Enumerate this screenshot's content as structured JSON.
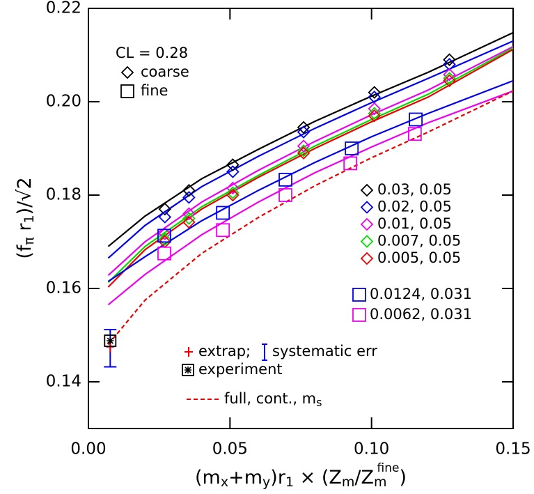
{
  "chart_data": {
    "type": "scatter",
    "xlim": [
      0,
      0.15
    ],
    "ylim": [
      0.13,
      0.22
    ],
    "xticks": [
      {
        "value": 0,
        "label": "0.00"
      },
      {
        "value": 0.05,
        "label": "0.05"
      },
      {
        "value": 0.1,
        "label": "0.10"
      },
      {
        "value": 0.15,
        "label": "0.15"
      }
    ],
    "yticks": [
      0.14,
      0.16,
      0.18,
      {
        "value": 0.2,
        "label": "0.20"
      },
      0.22
    ],
    "xlabel_parts": [
      "(m",
      "x",
      "+m",
      "y",
      ")r",
      "1",
      " × (Z",
      "m",
      "/Z",
      "m",
      "fine",
      ")"
    ],
    "ylabel_parts": [
      "(f",
      "π",
      " r",
      "1",
      ")/√2"
    ],
    "annotation": "CL = 0.28",
    "marker_legend": [
      "coarse",
      "fine"
    ],
    "series": [
      {
        "name": "0.03, 0.05",
        "color": "#000000",
        "marker": "diamond",
        "x": [
          0.027,
          0.0355,
          0.051,
          0.076,
          0.101,
          0.1275
        ],
        "values": [
          0.177,
          0.181,
          0.1865,
          0.1945,
          0.202,
          0.209
        ]
      },
      {
        "name": "0.02, 0.05",
        "color": "#0000ee",
        "marker": "diamond",
        "x": [
          0.027,
          0.0355,
          0.051,
          0.076,
          0.101,
          0.1275
        ],
        "values": [
          0.1753,
          0.1795,
          0.185,
          0.1935,
          0.201,
          0.208
        ]
      },
      {
        "name": "0.01, 0.05",
        "color": "#ee00ee",
        "marker": "diamond",
        "x": [
          0.027,
          0.0355,
          0.051,
          0.076,
          0.101,
          0.1275
        ],
        "values": [
          0.1717,
          0.176,
          0.1815,
          0.1905,
          0.1985,
          0.2058
        ]
      },
      {
        "name": "0.007, 0.05",
        "color": "#00dd00",
        "marker": "diamond",
        "x": [
          0.027,
          0.0355,
          0.051,
          0.076,
          0.101,
          0.1275
        ],
        "values": [
          0.1705,
          0.175,
          0.1805,
          0.1895,
          0.1975,
          0.205
        ]
      },
      {
        "name": "0.005, 0.05",
        "color": "#ee0000",
        "marker": "diamond",
        "x": [
          0.027,
          0.0355,
          0.051,
          0.076,
          0.101,
          0.1275
        ],
        "values": [
          0.17,
          0.1742,
          0.18,
          0.189,
          0.197,
          0.2045
        ]
      },
      {
        "name": "0.0124, 0.031",
        "color": "#0000ee",
        "marker": "square",
        "x": [
          0.0268,
          0.0475,
          0.0696,
          0.093,
          0.1156
        ],
        "values": [
          0.1713,
          0.1762,
          0.1833,
          0.19,
          0.1962
        ]
      },
      {
        "name": "0.0062, 0.031",
        "color": "#ee00ee",
        "marker": "square",
        "x": [
          0.0268,
          0.0475,
          0.0696,
          0.0925,
          0.1153
        ],
        "values": [
          0.1675,
          0.1725,
          0.18,
          0.1868,
          0.1931
        ]
      }
    ],
    "fits": [
      {
        "color": "#000000",
        "x": [
          0.007,
          0.02,
          0.04,
          0.06,
          0.08,
          0.1,
          0.12,
          0.15
        ],
        "values": [
          0.169,
          0.1755,
          0.1835,
          0.1898,
          0.1958,
          0.2012,
          0.2063,
          0.2148
        ]
      },
      {
        "color": "#0000ee",
        "x": [
          0.007,
          0.02,
          0.04,
          0.06,
          0.08,
          0.1,
          0.12,
          0.15
        ],
        "values": [
          0.1665,
          0.1735,
          0.1818,
          0.1883,
          0.1943,
          0.1998,
          0.205,
          0.213
        ]
      },
      {
        "color": "#ee00ee",
        "x": [
          0.007,
          0.02,
          0.04,
          0.06,
          0.08,
          0.1,
          0.12,
          0.15
        ],
        "values": [
          0.1628,
          0.17,
          0.1785,
          0.1853,
          0.1915,
          0.1972,
          0.2025,
          0.2118
        ]
      },
      {
        "color": "#00dd00",
        "x": [
          0.007,
          0.02,
          0.04,
          0.06,
          0.08,
          0.1,
          0.12,
          0.15
        ],
        "values": [
          0.1613,
          0.169,
          0.1775,
          0.1842,
          0.1905,
          0.1962,
          0.2016,
          0.2115
        ]
      },
      {
        "color": "#ee0000",
        "x": [
          0.007,
          0.02,
          0.04,
          0.06,
          0.08,
          0.1,
          0.12,
          0.15
        ],
        "values": [
          0.1603,
          0.1683,
          0.177,
          0.1838,
          0.19,
          0.1957,
          0.201,
          0.2112
        ]
      },
      {
        "color": "#0000ee",
        "x": [
          0.007,
          0.02,
          0.04,
          0.06,
          0.08,
          0.1,
          0.12,
          0.15
        ],
        "values": [
          0.1615,
          0.1668,
          0.1745,
          0.181,
          0.187,
          0.1925,
          0.1975,
          0.2045
        ]
      },
      {
        "color": "#ee00ee",
        "x": [
          0.007,
          0.02,
          0.04,
          0.06,
          0.08,
          0.1,
          0.12,
          0.15
        ],
        "values": [
          0.1565,
          0.163,
          0.1715,
          0.1785,
          0.1848,
          0.1903,
          0.1955,
          0.2023
        ]
      }
    ],
    "continuum": {
      "label_parts": [
        "full, cont., m",
        "s"
      ],
      "color": "#ee0000",
      "dashed": true,
      "x": [
        0.007,
        0.02,
        0.04,
        0.06,
        0.08,
        0.1,
        0.12,
        0.15
      ],
      "values": [
        0.148,
        0.1575,
        0.1675,
        0.1752,
        0.182,
        0.188,
        0.1935,
        0.2023
      ]
    },
    "extrap": {
      "label": "extrap;",
      "color": "#ee0000",
      "x": 0.0077,
      "value": 0.1475,
      "error": 0.0012
    },
    "systematic": {
      "label": "systematic err",
      "color": "#0000ee",
      "x": 0.0077,
      "value": 0.1472,
      "error": 0.004
    },
    "experiment": {
      "label": "experiment",
      "color": "#000000",
      "x": 0.0077,
      "value": 0.1488
    }
  }
}
